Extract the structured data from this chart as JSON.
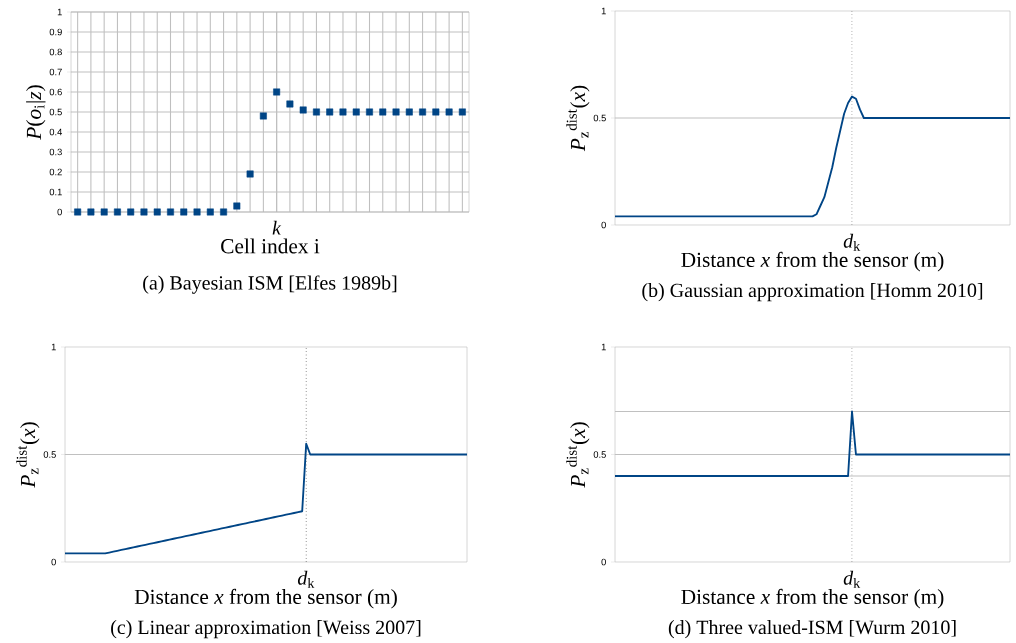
{
  "chart_data": [
    {
      "type": "scatter",
      "title": "(a) Bayesian ISM [Elfes 1989b]",
      "xlabel": "Cell index i",
      "ylabel": "*P*(*o*$_{i}$|*z*)",
      "categories": [
        null,
        null,
        null,
        null,
        null,
        null,
        null,
        null,
        null,
        null,
        null,
        null,
        null,
        null,
        null,
        "*k*",
        null,
        null,
        null,
        null,
        null,
        null,
        null,
        null,
        null,
        null,
        null,
        null,
        null,
        null
      ],
      "values": [
        0,
        0,
        0,
        0,
        0,
        0,
        0,
        0,
        0,
        0,
        0,
        0,
        0.03,
        0.19,
        0.48,
        0.6,
        0.54,
        0.51,
        0.5,
        0.5,
        0.5,
        0.5,
        0.5,
        0.5,
        0.5,
        0.5,
        0.5,
        0.5,
        0.5,
        0.5
      ],
      "color": "#004586",
      "marker": "square",
      "ylim": [
        0,
        1
      ],
      "yticks": [
        0,
        0.1,
        0.2,
        0.3,
        0.4,
        0.5,
        0.6,
        0.7,
        0.8,
        0.9,
        1
      ],
      "grid": true
    },
    {
      "type": "line",
      "title": "(b) Gaussian approximation [Homm 2010]",
      "xlabel": "Distance *x* from the sensor (m)",
      "ylabel": "*P*$_{z}$$^{dist}$(*x*)",
      "categories": [
        null,
        null,
        null,
        null,
        null,
        null,
        null,
        null,
        null,
        null,
        null,
        null,
        null,
        null,
        null,
        null,
        null,
        null,
        null,
        null,
        null,
        null,
        null,
        null,
        null,
        null,
        null,
        null,
        null,
        null,
        null,
        null,
        null,
        null,
        null,
        null,
        null,
        null,
        null,
        null,
        null,
        null,
        null,
        null,
        null,
        null,
        null,
        null,
        null,
        null,
        null,
        null,
        null,
        null,
        null,
        null,
        null,
        null,
        null,
        null,
        "*d*$_{k}$",
        null,
        null,
        null,
        null,
        null,
        null,
        null,
        null,
        null,
        null,
        null,
        null,
        null,
        null,
        null,
        null,
        null,
        null,
        null,
        null,
        null,
        null,
        null,
        null,
        null,
        null,
        null,
        null,
        null,
        null,
        null,
        null,
        null,
        null,
        null,
        null,
        null,
        null,
        null,
        null
      ],
      "values": [
        0.04,
        0.04,
        0.04,
        0.04,
        0.04,
        0.04,
        0.04,
        0.04,
        0.04,
        0.04,
        0.04,
        0.04,
        0.04,
        0.04,
        0.04,
        0.04,
        0.04,
        0.04,
        0.04,
        0.04,
        0.04,
        0.04,
        0.04,
        0.04,
        0.04,
        0.04,
        0.04,
        0.04,
        0.04,
        0.04,
        0.04,
        0.04,
        0.04,
        0.04,
        0.04,
        0.04,
        0.04,
        0.04,
        0.04,
        0.04,
        0.04,
        0.04,
        0.04,
        0.04,
        0.04,
        0.04,
        0.04,
        0.04,
        0.04,
        0.04,
        0.04,
        0.05,
        0.09,
        0.13,
        0.2,
        0.27,
        0.36,
        0.44,
        0.52,
        0.57,
        0.6,
        0.59,
        0.54,
        0.5,
        0.5,
        0.5,
        0.5,
        0.5,
        0.5,
        0.5,
        0.5,
        0.5,
        0.5,
        0.5,
        0.5,
        0.5,
        0.5,
        0.5,
        0.5,
        0.5,
        0.5,
        0.5,
        0.5,
        0.5,
        0.5,
        0.5,
        0.5,
        0.5,
        0.5,
        0.5,
        0.5,
        0.5,
        0.5,
        0.5,
        0.5,
        0.5,
        0.5,
        0.5,
        0.5,
        0.5,
        0.5
      ],
      "color": "#004586",
      "ylim": [
        0,
        1
      ],
      "yticks": [
        0,
        0.5,
        1
      ],
      "ref_lines": [
        {
          "axis": "x",
          "value": "*d*$_{k}$",
          "color": "#000000",
          "line_style": "dotted"
        },
        {
          "axis": "y",
          "value": 0.5,
          "color": "#c0c0c0"
        }
      ]
    },
    {
      "type": "line",
      "title": "(c) Linear approximation [Weiss 2007]",
      "xlabel": "Distance *x* from the sensor (m)",
      "ylabel": "*P*$_{z}$$^{dist}$(*x*)",
      "categories": [
        null,
        null,
        null,
        null,
        null,
        null,
        null,
        null,
        null,
        null,
        null,
        null,
        null,
        null,
        null,
        null,
        null,
        null,
        null,
        null,
        null,
        null,
        null,
        null,
        null,
        null,
        null,
        null,
        null,
        null,
        null,
        null,
        null,
        null,
        null,
        null,
        null,
        null,
        null,
        null,
        null,
        null,
        null,
        null,
        null,
        null,
        null,
        null,
        null,
        null,
        null,
        null,
        null,
        null,
        null,
        null,
        null,
        null,
        null,
        null,
        "*d*$_{k}$",
        null,
        null,
        null,
        null,
        null,
        null,
        null,
        null,
        null,
        null,
        null,
        null,
        null,
        null,
        null,
        null,
        null,
        null,
        null,
        null,
        null,
        null,
        null,
        null,
        null,
        null,
        null,
        null,
        null,
        null,
        null,
        null,
        null,
        null,
        null,
        null,
        null,
        null,
        null,
        null
      ],
      "values": [
        0.04,
        0.04,
        0.04,
        0.04,
        0.04,
        0.04,
        0.04,
        0.04,
        0.04,
        0.04,
        0.04,
        0.044,
        0.048,
        0.052,
        0.056,
        0.06,
        0.064,
        0.068,
        0.072,
        0.076,
        0.08,
        0.084,
        0.088,
        0.092,
        0.096,
        0.1,
        0.104,
        0.108,
        0.112,
        0.116,
        0.12,
        0.124,
        0.128,
        0.132,
        0.136,
        0.14,
        0.144,
        0.148,
        0.152,
        0.156,
        0.16,
        0.164,
        0.168,
        0.172,
        0.176,
        0.18,
        0.184,
        0.188,
        0.192,
        0.196,
        0.2,
        0.204,
        0.208,
        0.212,
        0.216,
        0.22,
        0.224,
        0.228,
        0.232,
        0.236,
        0.55,
        0.5,
        0.5,
        0.5,
        0.5,
        0.5,
        0.5,
        0.5,
        0.5,
        0.5,
        0.5,
        0.5,
        0.5,
        0.5,
        0.5,
        0.5,
        0.5,
        0.5,
        0.5,
        0.5,
        0.5,
        0.5,
        0.5,
        0.5,
        0.5,
        0.5,
        0.5,
        0.5,
        0.5,
        0.5,
        0.5,
        0.5,
        0.5,
        0.5,
        0.5,
        0.5,
        0.5,
        0.5,
        0.5,
        0.5,
        0.5
      ],
      "color": "#004586",
      "ylim": [
        0,
        1
      ],
      "yticks": [
        0,
        0.5,
        1
      ],
      "ref_lines": [
        {
          "axis": "x",
          "value": "*d*$_{k}$",
          "color": "#000000",
          "line_style": "dotted"
        },
        {
          "axis": "y",
          "value": 0.5,
          "color": "#c0c0c0"
        }
      ]
    },
    {
      "type": "line",
      "title": "(d) Three valued-ISM [Wurm 2010]",
      "xlabel": "Distance *x* from the sensor (m)",
      "ylabel": "*P*$_{z}$$^{dist}$(*x*)",
      "categories": [
        null,
        null,
        null,
        null,
        null,
        null,
        null,
        null,
        null,
        null,
        null,
        null,
        null,
        null,
        null,
        null,
        null,
        null,
        null,
        null,
        null,
        null,
        null,
        null,
        null,
        null,
        null,
        null,
        null,
        null,
        null,
        null,
        null,
        null,
        null,
        null,
        null,
        null,
        null,
        null,
        null,
        null,
        null,
        null,
        null,
        null,
        null,
        null,
        null,
        null,
        null,
        null,
        null,
        null,
        null,
        null,
        null,
        null,
        null,
        null,
        "*d*$_{k}$",
        null,
        null,
        null,
        null,
        null,
        null,
        null,
        null,
        null,
        null,
        null,
        null,
        null,
        null,
        null,
        null,
        null,
        null,
        null,
        null,
        null,
        null,
        null,
        null,
        null,
        null,
        null,
        null,
        null,
        null,
        null,
        null,
        null,
        null,
        null,
        null,
        null,
        null,
        null,
        null
      ],
      "values": [
        0.4,
        0.4,
        0.4,
        0.4,
        0.4,
        0.4,
        0.4,
        0.4,
        0.4,
        0.4,
        0.4,
        0.4,
        0.4,
        0.4,
        0.4,
        0.4,
        0.4,
        0.4,
        0.4,
        0.4,
        0.4,
        0.4,
        0.4,
        0.4,
        0.4,
        0.4,
        0.4,
        0.4,
        0.4,
        0.4,
        0.4,
        0.4,
        0.4,
        0.4,
        0.4,
        0.4,
        0.4,
        0.4,
        0.4,
        0.4,
        0.4,
        0.4,
        0.4,
        0.4,
        0.4,
        0.4,
        0.4,
        0.4,
        0.4,
        0.4,
        0.4,
        0.4,
        0.4,
        0.4,
        0.4,
        0.4,
        0.4,
        0.4,
        0.4,
        0.4,
        0.7,
        0.5,
        0.5,
        0.5,
        0.5,
        0.5,
        0.5,
        0.5,
        0.5,
        0.5,
        0.5,
        0.5,
        0.5,
        0.5,
        0.5,
        0.5,
        0.5,
        0.5,
        0.5,
        0.5,
        0.5,
        0.5,
        0.5,
        0.5,
        0.5,
        0.5,
        0.5,
        0.5,
        0.5,
        0.5,
        0.5,
        0.5,
        0.5,
        0.5,
        0.5,
        0.5,
        0.5,
        0.5,
        0.5,
        0.5,
        0.5
      ],
      "color": "#004586",
      "ylim": [
        0,
        1
      ],
      "yticks": [
        0,
        0.5,
        1
      ],
      "ref_lines": [
        {
          "axis": "x",
          "value": "*d*$_{k}$",
          "color": "#000000",
          "line_style": "dotted"
        },
        {
          "axis": "y",
          "value": 0.4,
          "color": "#c0c0c0"
        },
        {
          "axis": "y",
          "value": 0.5,
          "color": "#c0c0c0"
        },
        {
          "axis": "y",
          "value": 0.7,
          "color": "#c0c0c0"
        }
      ]
    }
  ]
}
